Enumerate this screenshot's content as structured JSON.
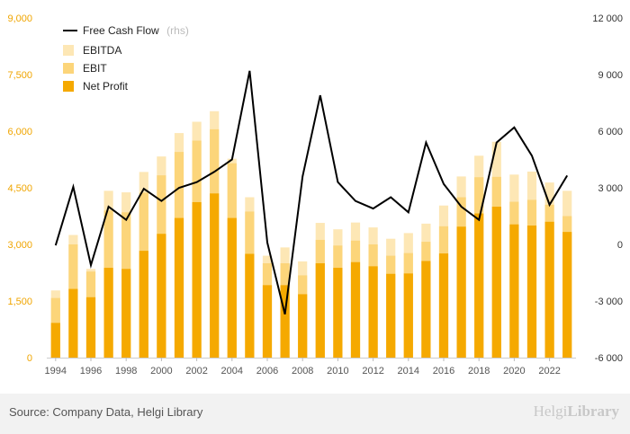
{
  "chart_data": {
    "type": "bar",
    "x": [
      1994,
      1995,
      1996,
      1997,
      1998,
      1999,
      2000,
      2001,
      2002,
      2003,
      2004,
      2005,
      2006,
      2007,
      2008,
      2009,
      2010,
      2011,
      2012,
      2013,
      2014,
      2015,
      2016,
      2017,
      2018,
      2019,
      2020,
      2021,
      2022,
      2023
    ],
    "x_tick_labels": [
      "1994",
      "1996",
      "1998",
      "2000",
      "2002",
      "2004",
      "2006",
      "2008",
      "2010",
      "2012",
      "2014",
      "2016",
      "2018",
      "2020",
      "2022"
    ],
    "series": [
      {
        "name": "EBITDA",
        "axis": "left",
        "color": "#fde7b5",
        "values": [
          1780,
          3250,
          2350,
          4420,
          4380,
          4920,
          5330,
          5950,
          6250,
          6530,
          5270,
          4250,
          2700,
          2920,
          2550,
          3570,
          3400,
          3580,
          3450,
          3150,
          3300,
          3550,
          4030,
          4800,
          5350,
          5720,
          4850,
          4930,
          4640,
          4420
        ]
      },
      {
        "name": "EBIT",
        "axis": "left",
        "color": "#fcd57a",
        "values": [
          1580,
          3000,
          2280,
          3900,
          3850,
          4370,
          4830,
          5450,
          5750,
          6050,
          5150,
          3870,
          2500,
          2500,
          2180,
          3120,
          2970,
          3100,
          3000,
          2700,
          2770,
          3070,
          3480,
          4250,
          4780,
          4790,
          4130,
          4180,
          4050,
          3750
        ]
      },
      {
        "name": "Net Profit",
        "axis": "left",
        "color": "#f5a900",
        "values": [
          920,
          1820,
          1600,
          2380,
          2350,
          2830,
          3280,
          3700,
          4120,
          4350,
          3700,
          2750,
          1920,
          1920,
          1680,
          2500,
          2380,
          2530,
          2420,
          2220,
          2230,
          2560,
          2760,
          3470,
          3820,
          4000,
          3530,
          3500,
          3600,
          3330
        ]
      },
      {
        "name": "Free Cash Flow",
        "axis": "right",
        "color": "#000000",
        "note": "(rhs)",
        "values": [
          -50,
          3050,
          -1100,
          2000,
          1300,
          2950,
          2300,
          3000,
          3300,
          3850,
          4500,
          9200,
          100,
          -3700,
          3600,
          7900,
          3300,
          2300,
          1900,
          2500,
          1700,
          5400,
          3200,
          2000,
          1300,
          5400,
          6200,
          4700,
          2100,
          3650
        ]
      }
    ],
    "y_left": {
      "ylim": [
        0,
        9000
      ],
      "tick_labels": [
        "0",
        "1,500",
        "3,000",
        "4,500",
        "6,000",
        "7,500",
        "9,000"
      ],
      "color": "#f0a500"
    },
    "y_right": {
      "ylim": [
        -6000,
        12000
      ],
      "tick_labels": [
        "-6 000",
        "-3 000",
        "0",
        "3 000",
        "6 000",
        "9 000",
        "12 000"
      ],
      "color": "#333333"
    },
    "legend_placement": "top-left",
    "grid": false
  },
  "footer": {
    "source": "Source: Company Data, Helgi Library",
    "logo_name": "Helgi",
    "logo_suffix": "Library"
  }
}
